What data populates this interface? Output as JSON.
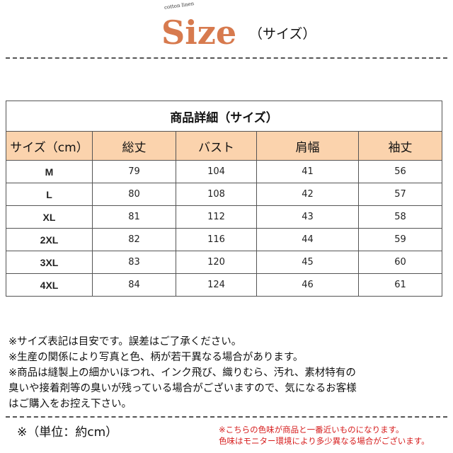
{
  "header": {
    "tagline": "cotton linen",
    "logo": "Size",
    "subtitle": "（サイズ）"
  },
  "table": {
    "title": "商品詳細（サイズ）",
    "columns": [
      "サイズ（cm）",
      "総丈",
      "バスト",
      "肩幅",
      "袖丈"
    ],
    "rows": [
      [
        "M",
        "79",
        "104",
        "41",
        "56"
      ],
      [
        "L",
        "80",
        "108",
        "42",
        "57"
      ],
      [
        "XL",
        "81",
        "112",
        "43",
        "58"
      ],
      [
        "2XL",
        "82",
        "116",
        "44",
        "59"
      ],
      [
        "3XL",
        "83",
        "120",
        "45",
        "60"
      ],
      [
        "4XL",
        "84",
        "124",
        "46",
        "61"
      ]
    ],
    "header_bg": "#fbd3ad"
  },
  "notes": [
    "※サイズ表記は目安です。誤差はご了承ください。",
    "※生産の関係により写真と色、柄が若干異なる場合があります。",
    "※商品は縫製上の細かいほつれ、インク飛び、織りむら、汚れ、素材特有の",
    "臭いや接着剤等の臭いが残っている場合がございますので、気になるお客様",
    "はご購入をお控え下さい。"
  ],
  "footer": {
    "unit": "※（単位：約cm）",
    "color_notes": [
      "※こちらの色味が商品と一番近いものになります。",
      "色味はモニター環境により多少異なる場合がございます。"
    ],
    "color_note_color": "#d61c1c"
  }
}
